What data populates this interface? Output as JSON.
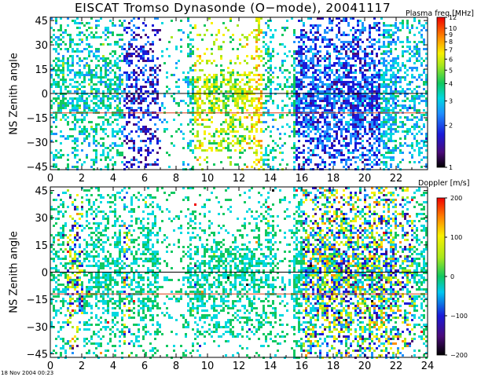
{
  "title": "EISCAT Tromso Dynasonde (O−mode),  20041117",
  "timestamp": "18 Nov 2004 00:23",
  "chart_data": [
    {
      "type": "heatmap",
      "name": "plasma-frequency",
      "ylabel": "NS Zenith angle",
      "x_ticks": [
        "0",
        "2",
        "4",
        "6",
        "8",
        "10",
        "12",
        "14",
        "16",
        "18",
        "20",
        "22"
      ],
      "x_range": [
        0,
        24
      ],
      "y_ticks": [
        "45",
        "30",
        "15",
        "0",
        "−15",
        "−30",
        "−45"
      ],
      "y_range": [
        -47,
        47
      ],
      "reference_lines": [
        0,
        -12
      ],
      "colorbar": {
        "title": "Plasma freq [MHz]",
        "scale": "log",
        "range": [
          1,
          12
        ],
        "ticks": [
          "12",
          "10",
          "9",
          "8",
          "7",
          "6",
          "5",
          "4",
          "3",
          "2",
          "1"
        ]
      }
    },
    {
      "type": "heatmap",
      "name": "doppler",
      "ylabel": "NS Zenith angle",
      "x_ticks": [
        "0",
        "2",
        "4",
        "6",
        "8",
        "10",
        "12",
        "14",
        "16",
        "18",
        "20",
        "22",
        "24"
      ],
      "x_range": [
        0,
        24
      ],
      "y_ticks": [
        "45",
        "30",
        "15",
        "0",
        "−15",
        "−30",
        "−45"
      ],
      "y_range": [
        -47,
        47
      ],
      "reference_lines": [
        0,
        -12
      ],
      "colorbar": {
        "title": "Doppler [m/s]",
        "scale": "linear",
        "range": [
          -200,
          200
        ],
        "ticks": [
          "200",
          "100",
          "0",
          "−100",
          "−200"
        ]
      }
    }
  ],
  "colors": {
    "reference_line_zero": "#000000",
    "reference_line_minus12": "#e03c14",
    "axis": "#000000"
  }
}
